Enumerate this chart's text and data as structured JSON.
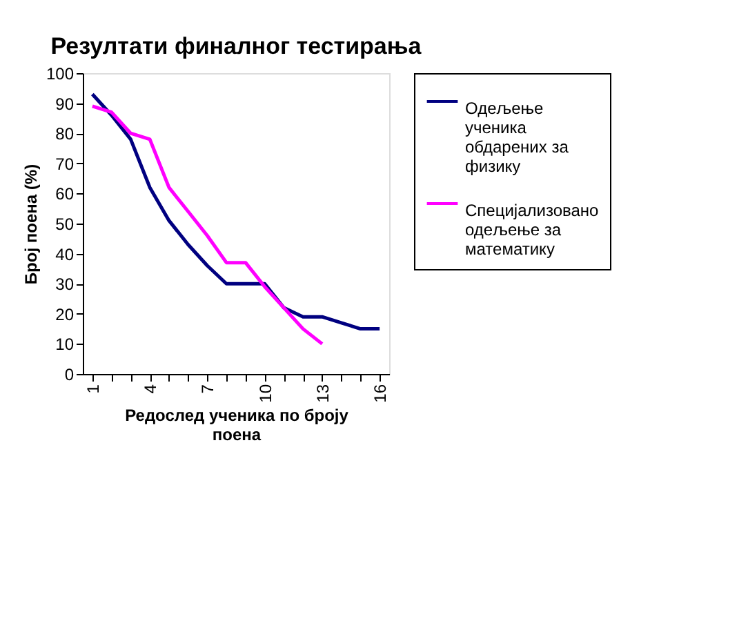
{
  "chart_data": {
    "type": "line",
    "title": "Резултати финалног тестирања",
    "xlabel": "Редослед ученика по броју поена",
    "ylabel": "Број поена (%)",
    "categories": [
      "1",
      null,
      null,
      "4",
      null,
      null,
      "7",
      null,
      null,
      "10",
      null,
      null,
      "13",
      null,
      null,
      "16"
    ],
    "series": [
      {
        "name": "Одељење ученика обдарених за физику",
        "color": "#000080",
        "values": [
          93,
          86,
          78,
          62,
          51,
          43,
          36,
          30,
          30,
          30,
          22,
          19,
          19,
          17,
          15,
          15
        ]
      },
      {
        "name": "Специјализовано одељење за математику",
        "color": "#ff00ff",
        "values": [
          89,
          87,
          80,
          78,
          62,
          54,
          46,
          37,
          37,
          29,
          22,
          15,
          10,
          null,
          null,
          null
        ]
      }
    ],
    "ylim": [
      0,
      100
    ],
    "yticks": [
      0,
      10,
      20,
      30,
      40,
      50,
      60,
      70,
      80,
      90,
      100
    ],
    "grid": false,
    "legend": "right",
    "marker": "none",
    "line_style": "solid"
  }
}
